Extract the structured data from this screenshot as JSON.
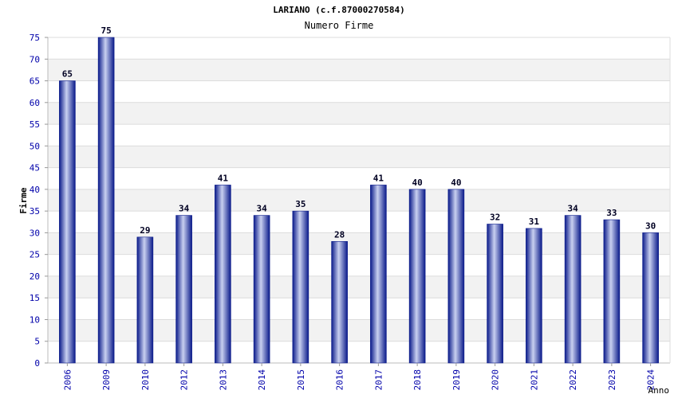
{
  "chart_data": {
    "type": "bar",
    "title": "LARIANO (c.f.87000270584)",
    "subtitle": "Numero Firme",
    "xlabel": "Anno",
    "ylabel": "Firme",
    "categories": [
      "2006",
      "2009",
      "2010",
      "2012",
      "2013",
      "2014",
      "2015",
      "2016",
      "2017",
      "2018",
      "2019",
      "2020",
      "2021",
      "2022",
      "2023",
      "2024"
    ],
    "values": [
      65,
      75,
      29,
      34,
      41,
      34,
      35,
      28,
      41,
      40,
      40,
      32,
      31,
      34,
      33,
      30
    ],
    "ylim": [
      0,
      75
    ],
    "yticks": [
      0,
      5,
      10,
      15,
      20,
      25,
      30,
      35,
      40,
      45,
      50,
      55,
      60,
      65,
      70,
      75
    ],
    "grid": true,
    "data_labels": true,
    "colors": {
      "bar_dark": "#0a1a8a",
      "bar_light": "#c9d0f0",
      "tick_label": "#0000aa",
      "band": "#f2f2f2",
      "grid": "#dcdcdc"
    }
  }
}
